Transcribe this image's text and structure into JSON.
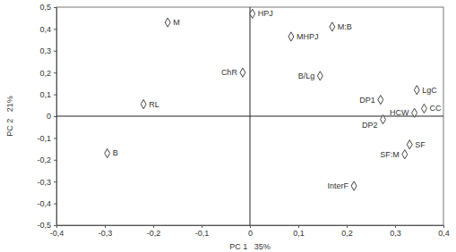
{
  "chart_data": {
    "type": "scatter",
    "x_label": "PC 1   35%",
    "y_label": "PC 2   21%",
    "labels": [
      "HPJ",
      "M",
      "MHPJ",
      "M:B",
      "ChR",
      "B/Lg",
      "RL",
      "B",
      "DP1",
      "DP2",
      "LgC",
      "HCW",
      "CC",
      "SF",
      "SF:M",
      "InterF"
    ],
    "x": [
      0.005,
      -0.17,
      0.085,
      0.17,
      -0.015,
      0.145,
      -0.22,
      -0.295,
      0.27,
      0.275,
      0.345,
      0.34,
      0.36,
      0.33,
      0.32,
      0.215
    ],
    "y": [
      0.47,
      0.43,
      0.365,
      0.41,
      0.2,
      0.185,
      0.055,
      -0.17,
      0.075,
      -0.015,
      0.12,
      0.015,
      0.035,
      -0.13,
      -0.175,
      -0.32
    ],
    "xlim": [
      -0.4,
      0.4
    ],
    "ylim": [
      -0.5,
      0.5
    ],
    "xticks": [
      {
        "value": -0.4,
        "label": "-0,4"
      },
      {
        "value": -0.3,
        "label": "-0,3"
      },
      {
        "value": -0.2,
        "label": "-0,2"
      },
      {
        "value": -0.1,
        "label": "-0,1"
      },
      0,
      {
        "value": 0.1,
        "label": "0,1"
      },
      {
        "value": 0.2,
        "label": "0,2"
      },
      {
        "value": 0.3,
        "label": "0,3"
      },
      {
        "value": 0.4,
        "label": "0,4"
      }
    ],
    "yticks": [
      {
        "value": -0.5,
        "label": "-0,5"
      },
      {
        "value": -0.4,
        "label": "-0,4"
      },
      {
        "value": -0.3,
        "label": "-0,3"
      },
      {
        "value": -0.2,
        "label": "-0,2"
      },
      {
        "value": -0.1,
        "label": "-0,1"
      },
      0,
      {
        "value": 0.1,
        "label": "0,1"
      },
      {
        "value": 0.2,
        "label": "0,2"
      },
      {
        "value": 0.3,
        "label": "0,3"
      },
      {
        "value": 0.4,
        "label": "0,4"
      },
      {
        "value": 0.5,
        "label": "0,5"
      }
    ],
    "marker": "diamond",
    "color": "#444444"
  }
}
